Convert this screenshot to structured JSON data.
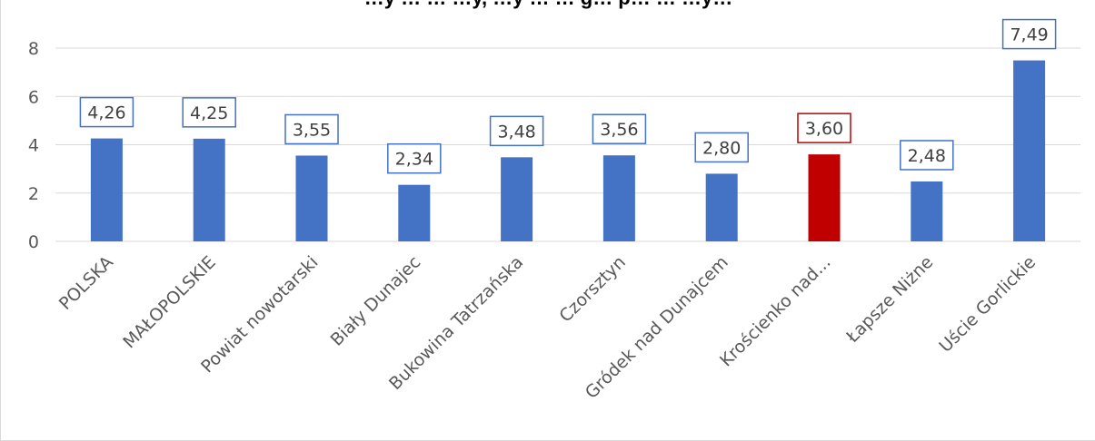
{
  "chart_data": {
    "type": "bar",
    "title": "…y … … …y, …y … … g… p… … …y…",
    "categories": [
      "POLSKA",
      "MAŁOPOLSKIE",
      "Powiat nowotarski",
      "Biały Dunajec",
      "Bukowina Tatrzańska",
      "Czorsztyn",
      "Gródek nad Dunajcem",
      "Krościenko nad...",
      "Łapsze Niżne",
      "Uście Gorlickie"
    ],
    "values": [
      4.26,
      4.25,
      3.55,
      2.34,
      3.48,
      3.56,
      2.8,
      3.6,
      2.48,
      7.49
    ],
    "data_labels": [
      "4,26",
      "4,25",
      "3,55",
      "2,34",
      "3,48",
      "3,56",
      "2,80",
      "3,60",
      "2,48",
      "7,49"
    ],
    "highlight_index": 7,
    "ylim": [
      0,
      8
    ],
    "yticks": [
      "0",
      "2",
      "4",
      "6",
      "8"
    ],
    "grid": true,
    "legend": "none",
    "colors": {
      "bar": "#4472c4",
      "highlight": "#c00000",
      "grid": "#d9d9d9",
      "label_border": "#4472c4",
      "highlight_border": "#c00000"
    }
  }
}
